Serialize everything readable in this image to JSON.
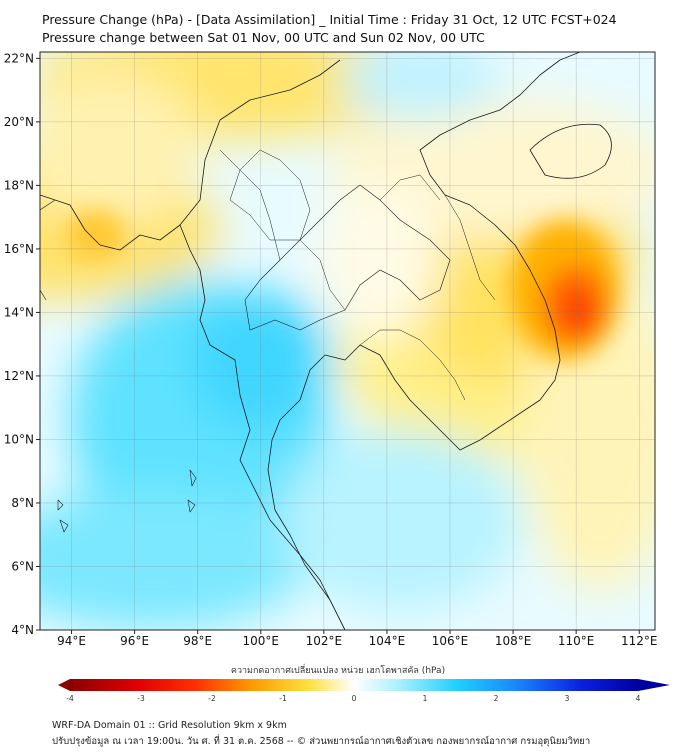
{
  "title_line1": "Pressure Change (hPa) - [Data Assimilation] _ Initial Time : Friday 31 Oct, 12 UTC FCST+024",
  "title_line2": "Pressure change between Sat 01 Nov, 00 UTC and Sun 02 Nov, 00 UTC",
  "map": {
    "lon_range": [
      93,
      112.5
    ],
    "lat_range": [
      4,
      22.2
    ],
    "lon_ticks": [
      "94°E",
      "96°E",
      "98°E",
      "100°E",
      "102°E",
      "104°E",
      "106°E",
      "108°E",
      "110°E",
      "112°E"
    ],
    "lon_tick_values": [
      94,
      96,
      98,
      100,
      102,
      104,
      106,
      108,
      110,
      112
    ],
    "lat_ticks": [
      "4°N",
      "6°N",
      "8°N",
      "10°N",
      "12°N",
      "14°N",
      "16°N",
      "18°N",
      "20°N",
      "22°N"
    ],
    "lat_tick_values": [
      4,
      6,
      8,
      10,
      12,
      14,
      16,
      18,
      20,
      22
    ],
    "grid": true,
    "colors": {
      "negative_strong": "#8b0000",
      "negative_mid": "#ff3000",
      "negative_weak": "#ffe040",
      "zero": "#ffffff",
      "positive_weak": "#a8f0ff",
      "positive_mid": "#20d0ff",
      "positive_strong": "#0000c0",
      "coastline": "#1a1a1a"
    }
  },
  "colorbar": {
    "label": "ความกดอากาศเปลี่ยนแปลง หน่วย เฮกโตพาสคัล (hPa)",
    "ticks": [
      "-4",
      "-3",
      "-2",
      "-1",
      "0",
      "1",
      "2",
      "3",
      "4"
    ],
    "tick_values": [
      -4,
      -3,
      -2,
      -1,
      0,
      1,
      2,
      3,
      4
    ],
    "range": [
      -4,
      4
    ]
  },
  "footer_line1": "WRF-DA Domain 01 :: Grid Resolution 9km x 9km",
  "footer_line2": "ปรับปรุงข้อมูล ณ เวลา 19:00น. วัน ศ. ที่ 31 ต.ค. 2568 -- © ส่วนพยากรณ์อากาศเชิงตัวเลข กองพยากรณ์อากาศ กรมอุตุนิยมวิทยา"
}
